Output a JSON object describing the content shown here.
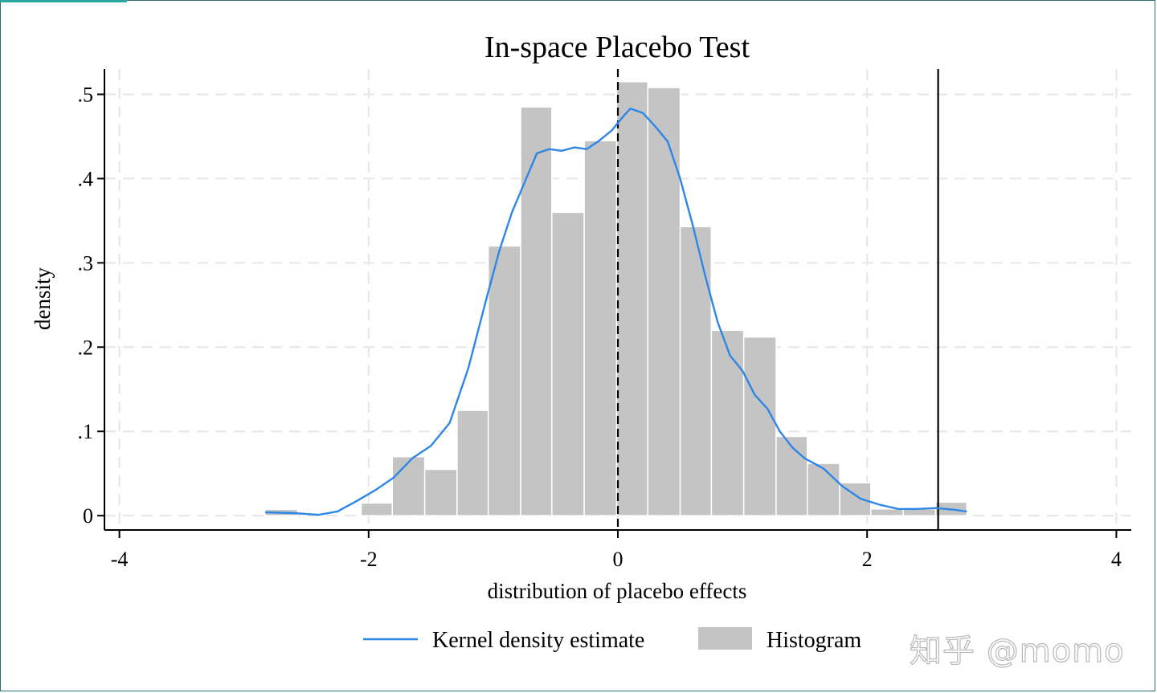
{
  "colors": {
    "bar_fill": "#c4c4c4",
    "bar_stroke": "#ffffff",
    "kde_line": "#2e86e6",
    "grid": "#e6e6e6",
    "axis": "#000000",
    "frame": "#2f6f73",
    "frame_accent": "#2aa7a0"
  },
  "watermark": "知乎 @momo",
  "chart_data": {
    "type": "bar",
    "title": "In-space Placebo Test",
    "xlabel": "distribution of placebo effects",
    "ylabel": "density",
    "xlim": [
      -4.12,
      4.12
    ],
    "ylim": [
      -0.017,
      0.53
    ],
    "grid": true,
    "legend_position": "bottom",
    "x_ticks": [
      -4,
      -2,
      0,
      2,
      4
    ],
    "x_tick_labels": [
      "-4",
      "-2",
      "0",
      "2",
      "4"
    ],
    "y_ticks": [
      0,
      0.1,
      0.2,
      0.3,
      0.4,
      0.5
    ],
    "y_tick_labels": [
      "0",
      ".1",
      ".2",
      ".3",
      ".4",
      ".5"
    ],
    "histogram": {
      "name": "Histogram",
      "bin_edges": [
        -2.83,
        -2.57,
        -2.32,
        -2.06,
        -1.81,
        -1.55,
        -1.29,
        -1.04,
        -0.78,
        -0.53,
        -0.27,
        -0.01,
        0.24,
        0.5,
        0.75,
        1.01,
        1.27,
        1.52,
        1.78,
        2.03,
        2.29,
        2.55,
        2.8
      ],
      "values": [
        0.0075,
        0,
        0,
        0.015,
        0.07,
        0.055,
        0.125,
        0.32,
        0.485,
        0.36,
        0.445,
        0.515,
        0.508,
        0.343,
        0.22,
        0.212,
        0.094,
        0.062,
        0.039,
        0.008,
        0.008,
        0.016
      ]
    },
    "series": [
      {
        "name": "Kernel density estimate",
        "x": [
          -2.83,
          -2.6,
          -2.4,
          -2.25,
          -2.1,
          -1.95,
          -1.8,
          -1.65,
          -1.5,
          -1.35,
          -1.2,
          -1.05,
          -0.95,
          -0.85,
          -0.75,
          -0.65,
          -0.55,
          -0.45,
          -0.35,
          -0.25,
          -0.15,
          -0.05,
          0.05,
          0.1,
          0.2,
          0.3,
          0.4,
          0.5,
          0.6,
          0.7,
          0.8,
          0.9,
          1.0,
          1.1,
          1.2,
          1.3,
          1.4,
          1.5,
          1.65,
          1.8,
          1.95,
          2.1,
          2.25,
          2.4,
          2.55,
          2.7,
          2.8
        ],
        "y": [
          0.004,
          0.003,
          0.001,
          0.005,
          0.017,
          0.03,
          0.045,
          0.068,
          0.083,
          0.11,
          0.175,
          0.26,
          0.315,
          0.36,
          0.395,
          0.43,
          0.435,
          0.433,
          0.437,
          0.435,
          0.445,
          0.457,
          0.475,
          0.483,
          0.478,
          0.462,
          0.444,
          0.4,
          0.345,
          0.285,
          0.23,
          0.19,
          0.172,
          0.143,
          0.127,
          0.1,
          0.081,
          0.068,
          0.056,
          0.035,
          0.02,
          0.013,
          0.008,
          0.008,
          0.009,
          0.007,
          0.005
        ]
      }
    ],
    "reference_lines": [
      {
        "x": 0,
        "style": "dashed"
      },
      {
        "x": 2.57,
        "style": "solid"
      }
    ],
    "legend": [
      {
        "label": "Kernel density estimate",
        "kind": "line"
      },
      {
        "label": "Histogram",
        "kind": "box"
      }
    ]
  }
}
